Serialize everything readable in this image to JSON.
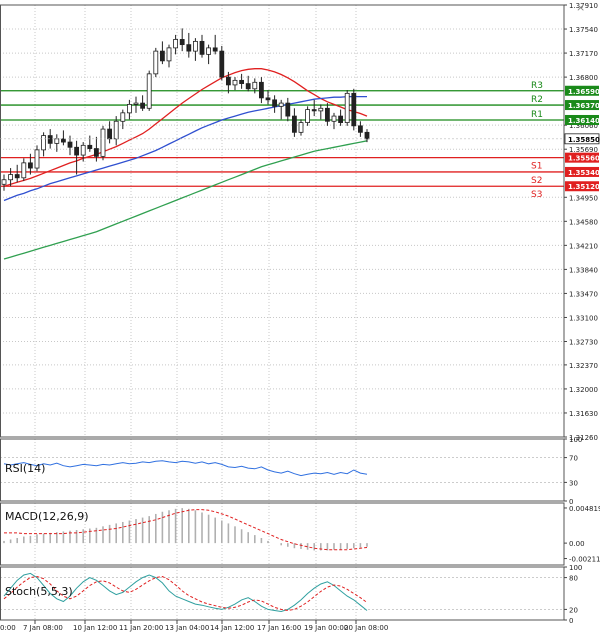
{
  "window": {
    "close_glyph": "×"
  },
  "chart_data": {
    "type": "candlestick",
    "x_tick_labels": [
      "7 Jan 08:00",
      "10 Jan 12:00",
      "11 Jan 20:00",
      "13 Jan 04:00",
      "14 Jan 12:00",
      "17 Jan 16:00",
      "19 Jan 00:00",
      "20 Jan 08:00"
    ],
    "x_left_partial_label": "0:00",
    "y_range": [
      1.3126,
      1.3791
    ],
    "y_tick_labels": [
      "1.37910",
      "1.37540",
      "1.37170",
      "1.36800",
      "1.36060",
      "1.35690",
      "1.34950",
      "1.34580",
      "1.34210",
      "1.33840",
      "1.33470",
      "1.33100",
      "1.32730",
      "1.32370",
      "1.32000",
      "1.31630",
      "1.31260"
    ],
    "candles": [
      {
        "o": 1.3515,
        "h": 1.353,
        "l": 1.3505,
        "c": 1.3522
      },
      {
        "o": 1.3522,
        "h": 1.354,
        "l": 1.3512,
        "c": 1.353
      },
      {
        "o": 1.353,
        "h": 1.3545,
        "l": 1.3518,
        "c": 1.3525
      },
      {
        "o": 1.3525,
        "h": 1.3555,
        "l": 1.352,
        "c": 1.3548
      },
      {
        "o": 1.3548,
        "h": 1.3562,
        "l": 1.353,
        "c": 1.354
      },
      {
        "o": 1.354,
        "h": 1.3575,
        "l": 1.3535,
        "c": 1.3568
      },
      {
        "o": 1.3568,
        "h": 1.3595,
        "l": 1.3558,
        "c": 1.359
      },
      {
        "o": 1.359,
        "h": 1.36,
        "l": 1.357,
        "c": 1.3578
      },
      {
        "o": 1.3578,
        "h": 1.3592,
        "l": 1.3565,
        "c": 1.3585
      },
      {
        "o": 1.3585,
        "h": 1.3598,
        "l": 1.3575,
        "c": 1.358
      },
      {
        "o": 1.358,
        "h": 1.359,
        "l": 1.356,
        "c": 1.3572
      },
      {
        "o": 1.3572,
        "h": 1.3582,
        "l": 1.353,
        "c": 1.356
      },
      {
        "o": 1.356,
        "h": 1.358,
        "l": 1.355,
        "c": 1.3575
      },
      {
        "o": 1.3575,
        "h": 1.359,
        "l": 1.3565,
        "c": 1.357
      },
      {
        "o": 1.357,
        "h": 1.3588,
        "l": 1.355,
        "c": 1.3558
      },
      {
        "o": 1.3558,
        "h": 1.3605,
        "l": 1.3552,
        "c": 1.36
      },
      {
        "o": 1.36,
        "h": 1.3612,
        "l": 1.3578,
        "c": 1.3585
      },
      {
        "o": 1.3585,
        "h": 1.362,
        "l": 1.3575,
        "c": 1.3612
      },
      {
        "o": 1.3612,
        "h": 1.363,
        "l": 1.36,
        "c": 1.3625
      },
      {
        "o": 1.3625,
        "h": 1.3645,
        "l": 1.3615,
        "c": 1.3638
      },
      {
        "o": 1.3638,
        "h": 1.365,
        "l": 1.3625,
        "c": 1.364
      },
      {
        "o": 1.364,
        "h": 1.3652,
        "l": 1.3628,
        "c": 1.3632
      },
      {
        "o": 1.3632,
        "h": 1.369,
        "l": 1.3628,
        "c": 1.3685
      },
      {
        "o": 1.3685,
        "h": 1.3725,
        "l": 1.368,
        "c": 1.372
      },
      {
        "o": 1.372,
        "h": 1.3735,
        "l": 1.37,
        "c": 1.3705
      },
      {
        "o": 1.3705,
        "h": 1.373,
        "l": 1.3695,
        "c": 1.3725
      },
      {
        "o": 1.3725,
        "h": 1.3745,
        "l": 1.3715,
        "c": 1.3738
      },
      {
        "o": 1.3738,
        "h": 1.3755,
        "l": 1.372,
        "c": 1.373
      },
      {
        "o": 1.373,
        "h": 1.3748,
        "l": 1.371,
        "c": 1.372
      },
      {
        "o": 1.372,
        "h": 1.374,
        "l": 1.3705,
        "c": 1.3735
      },
      {
        "o": 1.3735,
        "h": 1.3745,
        "l": 1.371,
        "c": 1.3715
      },
      {
        "o": 1.3715,
        "h": 1.373,
        "l": 1.37,
        "c": 1.3725
      },
      {
        "o": 1.3725,
        "h": 1.3745,
        "l": 1.3715,
        "c": 1.372
      },
      {
        "o": 1.372,
        "h": 1.3728,
        "l": 1.3675,
        "c": 1.368
      },
      {
        "o": 1.368,
        "h": 1.3688,
        "l": 1.3655,
        "c": 1.3668
      },
      {
        "o": 1.3668,
        "h": 1.368,
        "l": 1.366,
        "c": 1.3675
      },
      {
        "o": 1.3675,
        "h": 1.3685,
        "l": 1.3662,
        "c": 1.367
      },
      {
        "o": 1.367,
        "h": 1.3682,
        "l": 1.3658,
        "c": 1.3662
      },
      {
        "o": 1.3662,
        "h": 1.3678,
        "l": 1.3655,
        "c": 1.3672
      },
      {
        "o": 1.3672,
        "h": 1.368,
        "l": 1.364,
        "c": 1.3648
      },
      {
        "o": 1.3648,
        "h": 1.366,
        "l": 1.3638,
        "c": 1.3645
      },
      {
        "o": 1.3645,
        "h": 1.3652,
        "l": 1.3625,
        "c": 1.3635
      },
      {
        "o": 1.3635,
        "h": 1.3645,
        "l": 1.3615,
        "c": 1.364
      },
      {
        "o": 1.364,
        "h": 1.3648,
        "l": 1.3612,
        "c": 1.362
      },
      {
        "o": 1.362,
        "h": 1.3632,
        "l": 1.3588,
        "c": 1.3595
      },
      {
        "o": 1.3595,
        "h": 1.3615,
        "l": 1.359,
        "c": 1.361
      },
      {
        "o": 1.361,
        "h": 1.3635,
        "l": 1.3605,
        "c": 1.363
      },
      {
        "o": 1.363,
        "h": 1.3645,
        "l": 1.362,
        "c": 1.3628
      },
      {
        "o": 1.3628,
        "h": 1.3638,
        "l": 1.3615,
        "c": 1.3632
      },
      {
        "o": 1.3632,
        "h": 1.364,
        "l": 1.3605,
        "c": 1.3612
      },
      {
        "o": 1.3612,
        "h": 1.3625,
        "l": 1.36,
        "c": 1.362
      },
      {
        "o": 1.362,
        "h": 1.363,
        "l": 1.3605,
        "c": 1.361
      },
      {
        "o": 1.361,
        "h": 1.366,
        "l": 1.3605,
        "c": 1.3655
      },
      {
        "o": 1.3655,
        "h": 1.3662,
        "l": 1.3598,
        "c": 1.3605
      },
      {
        "o": 1.3605,
        "h": 1.3612,
        "l": 1.3588,
        "c": 1.3595
      },
      {
        "o": 1.3595,
        "h": 1.36,
        "l": 1.358,
        "c": 1.3585
      }
    ],
    "moving_averages": [
      {
        "color": "#e02020",
        "values": [
          1.3512,
          1.3515,
          1.3518,
          1.3521,
          1.3524,
          1.3528,
          1.3532,
          1.3536,
          1.354,
          1.3544,
          1.3548,
          1.3551,
          1.3555,
          1.3558,
          1.3561,
          1.3565,
          1.3569,
          1.3573,
          1.3578,
          1.3583,
          1.3588,
          1.3593,
          1.36,
          1.3608,
          1.3616,
          1.3624,
          1.3632,
          1.364,
          1.3647,
          1.3654,
          1.3661,
          1.3667,
          1.3673,
          1.3679,
          1.3683,
          1.3687,
          1.369,
          1.3692,
          1.3693,
          1.3693,
          1.3691,
          1.3688,
          1.3684,
          1.3679,
          1.3673,
          1.3666,
          1.3659,
          1.3653,
          1.3647,
          1.3642,
          1.3638,
          1.3634,
          1.363,
          1.3627,
          1.3624,
          1.362
        ]
      },
      {
        "color": "#3050d0",
        "values": [
          1.349,
          1.3494,
          1.3498,
          1.3501,
          1.3505,
          1.3508,
          1.3512,
          1.3516,
          1.3519,
          1.3522,
          1.3525,
          1.3528,
          1.3531,
          1.3534,
          1.3537,
          1.354,
          1.3543,
          1.3546,
          1.3549,
          1.3552,
          1.3555,
          1.3559,
          1.3563,
          1.3567,
          1.3572,
          1.3577,
          1.3582,
          1.3587,
          1.3592,
          1.3597,
          1.3602,
          1.3606,
          1.361,
          1.3614,
          1.3617,
          1.362,
          1.3623,
          1.3626,
          1.3628,
          1.363,
          1.3632,
          1.3634,
          1.3636,
          1.3638,
          1.364,
          1.3642,
          1.3644,
          1.3646,
          1.3647,
          1.3648,
          1.3649,
          1.3649,
          1.365,
          1.365,
          1.365,
          1.365
        ]
      },
      {
        "color": "#30a050",
        "values": [
          1.34,
          1.3403,
          1.3406,
          1.3409,
          1.3412,
          1.3415,
          1.3418,
          1.3421,
          1.3424,
          1.3427,
          1.343,
          1.3433,
          1.3436,
          1.3439,
          1.3442,
          1.3446,
          1.345,
          1.3454,
          1.3458,
          1.3462,
          1.3466,
          1.347,
          1.3474,
          1.3478,
          1.3482,
          1.3486,
          1.349,
          1.3494,
          1.3498,
          1.3502,
          1.3506,
          1.351,
          1.3514,
          1.3518,
          1.3522,
          1.3526,
          1.353,
          1.3534,
          1.3538,
          1.3542,
          1.3545,
          1.3548,
          1.3551,
          1.3554,
          1.3557,
          1.356,
          1.3563,
          1.3566,
          1.3568,
          1.357,
          1.3572,
          1.3574,
          1.3576,
          1.3578,
          1.358,
          1.3582
        ]
      }
    ],
    "levels": [
      {
        "name": "R3",
        "value": 1.3659,
        "label": "1.36590",
        "color": "#1a8a1a"
      },
      {
        "name": "R2",
        "value": 1.3637,
        "label": "1.36370",
        "color": "#1a8a1a"
      },
      {
        "name": "R1",
        "value": 1.3614,
        "label": "1.36140",
        "color": "#1a8a1a"
      },
      {
        "name": "S1",
        "value": 1.3556,
        "label": "1.35560",
        "color": "#e02020"
      },
      {
        "name": "S2",
        "value": 1.3534,
        "label": "1.35340",
        "color": "#e02020"
      },
      {
        "name": "S3",
        "value": 1.3512,
        "label": "1.35120",
        "color": "#e02020"
      }
    ],
    "current_price": {
      "value": 1.3585,
      "label": "1.35850"
    },
    "rsi": {
      "title": "RSI(14)",
      "y_range": [
        0,
        100
      ],
      "ticks": [
        "100",
        "70",
        "30",
        "0"
      ],
      "tick_values": [
        100,
        70,
        30,
        0
      ],
      "levels": [
        70,
        30
      ],
      "values": [
        60,
        58,
        60,
        62,
        59,
        57,
        60,
        58,
        61,
        57,
        55,
        57,
        59,
        58,
        57,
        59,
        58,
        60,
        62,
        60,
        61,
        63,
        62,
        64,
        65,
        63,
        62,
        64,
        63,
        61,
        63,
        60,
        62,
        59,
        55,
        54,
        56,
        53,
        52,
        55,
        50,
        47,
        45,
        48,
        44,
        41,
        43,
        45,
        44,
        46,
        43,
        46,
        44,
        50,
        45,
        43
      ]
    },
    "macd": {
      "title": "MACD(12,26,9)",
      "y_range": [
        -0.003,
        0.0055
      ],
      "ticks": [
        "0.004819",
        "0.00",
        "-0.002116"
      ],
      "tick_values": [
        0.004819,
        0,
        -0.002116
      ],
      "histogram": [
        0.0003,
        0.0005,
        0.0007,
        0.0009,
        0.001,
        0.0012,
        0.0013,
        0.0014,
        0.0015,
        0.0016,
        0.0017,
        0.0018,
        0.0019,
        0.002,
        0.0021,
        0.0023,
        0.0025,
        0.0027,
        0.0029,
        0.0031,
        0.0033,
        0.0035,
        0.0037,
        0.004,
        0.0043,
        0.0045,
        0.0047,
        0.0048,
        0.0047,
        0.0045,
        0.0042,
        0.0039,
        0.0035,
        0.0031,
        0.0027,
        0.0023,
        0.0019,
        0.0015,
        0.0011,
        0.0007,
        0.0003,
        0.0,
        -0.0003,
        -0.0005,
        -0.0007,
        -0.0008,
        -0.0009,
        -0.001,
        -0.001,
        -0.001,
        -0.0009,
        -0.0009,
        -0.0008,
        -0.0007,
        -0.0006,
        -0.0005
      ],
      "signal": [
        0.0014,
        0.0014,
        0.0014,
        0.0013,
        0.0013,
        0.0013,
        0.0013,
        0.0013,
        0.0013,
        0.0013,
        0.0014,
        0.0014,
        0.0015,
        0.0016,
        0.0017,
        0.0018,
        0.0019,
        0.002,
        0.0022,
        0.0024,
        0.0026,
        0.0028,
        0.003,
        0.0032,
        0.0035,
        0.0038,
        0.0041,
        0.0043,
        0.0045,
        0.0046,
        0.0046,
        0.0045,
        0.0043,
        0.004,
        0.0037,
        0.0033,
        0.0029,
        0.0025,
        0.0021,
        0.0017,
        0.0013,
        0.0009,
        0.0005,
        0.0002,
        -0.0001,
        -0.0003,
        -0.0005,
        -0.0007,
        -0.0008,
        -0.0009,
        -0.0009,
        -0.0009,
        -0.0009,
        -0.0008,
        -0.0007,
        -0.0006
      ]
    },
    "stoch": {
      "title": "Stoch(5,5,3)",
      "y_range": [
        0,
        100
      ],
      "ticks": [
        "100",
        "80",
        "20",
        "0"
      ],
      "tick_values": [
        100,
        80,
        20,
        0
      ],
      "levels": [
        80,
        20
      ],
      "k": [
        45,
        60,
        75,
        85,
        88,
        80,
        65,
        50,
        40,
        35,
        45,
        60,
        72,
        80,
        75,
        65,
        55,
        48,
        52,
        62,
        72,
        80,
        85,
        80,
        70,
        55,
        45,
        40,
        35,
        30,
        28,
        25,
        22,
        20,
        24,
        30,
        38,
        42,
        35,
        26,
        20,
        18,
        16,
        20,
        28,
        38,
        50,
        60,
        68,
        72,
        65,
        55,
        45,
        38,
        28,
        18
      ],
      "d": [
        40,
        50,
        62,
        72,
        80,
        82,
        78,
        68,
        55,
        45,
        40,
        45,
        55,
        65,
        72,
        74,
        70,
        62,
        55,
        52,
        58,
        66,
        74,
        80,
        82,
        76,
        66,
        55,
        46,
        40,
        34,
        30,
        27,
        24,
        22,
        24,
        28,
        34,
        38,
        36,
        30,
        24,
        20,
        18,
        20,
        26,
        34,
        44,
        54,
        62,
        66,
        64,
        58,
        50,
        42,
        33
      ]
    }
  }
}
